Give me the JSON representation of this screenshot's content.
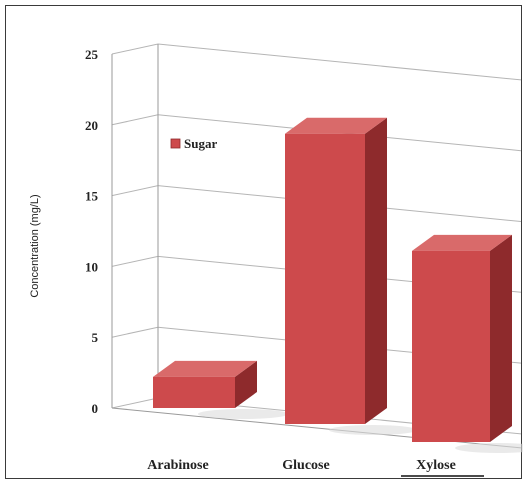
{
  "chart_data": {
    "type": "bar",
    "title": "",
    "xlabel": "",
    "ylabel": "Concentration (mg/L)",
    "categories": [
      "Arabinose",
      "Glucose",
      "Xylose"
    ],
    "series": [
      {
        "name": "Sugar",
        "values": [
          2.2,
          20.5,
          13.5
        ]
      }
    ],
    "yticks": [
      0,
      5,
      10,
      15,
      20,
      25
    ],
    "ylim": [
      0,
      25
    ],
    "grid": true,
    "legend": "upper-left",
    "colors": {
      "bar_front": "#cd4a4c",
      "bar_top": "#d96a6a",
      "bar_side": "#8e2a2c",
      "gridline": "#b5b5b5"
    }
  }
}
